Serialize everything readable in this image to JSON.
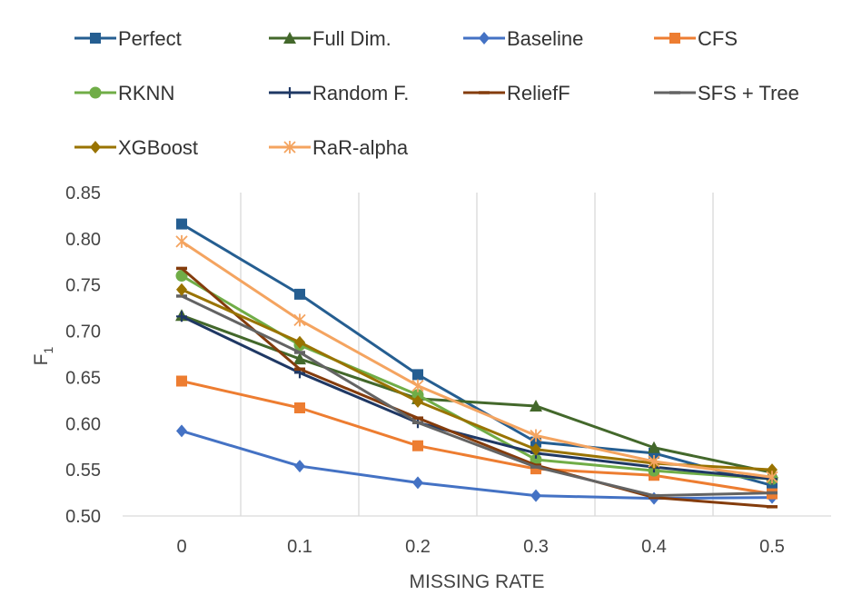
{
  "chart_data": {
    "type": "line",
    "title": "",
    "xlabel": "MISSING RATE",
    "ylabel": "F",
    "ylabel_subscript": "1",
    "categories": [
      "0",
      "0.1",
      "0.2",
      "0.3",
      "0.4",
      "0.5"
    ],
    "ylim": [
      0.5,
      0.85
    ],
    "yticks": [
      "0.50",
      "0.55",
      "0.60",
      "0.65",
      "0.70",
      "0.75",
      "0.80",
      "0.85"
    ],
    "grid": "vertical",
    "legend": "top",
    "series": [
      {
        "name": "Perfect",
        "color": "#255e91",
        "marker": "square",
        "values": [
          0.816,
          0.74,
          0.653,
          0.58,
          0.568,
          0.533
        ]
      },
      {
        "name": "Full Dim.",
        "color": "#43682b",
        "marker": "triangle",
        "values": [
          0.717,
          0.67,
          0.627,
          0.619,
          0.574,
          0.547
        ]
      },
      {
        "name": "Baseline",
        "color": "#4472c4",
        "marker": "diamond",
        "values": [
          0.592,
          0.554,
          0.536,
          0.522,
          0.519,
          0.52
        ]
      },
      {
        "name": "CFS",
        "color": "#ed7d31",
        "marker": "square",
        "values": [
          0.646,
          0.617,
          0.576,
          0.551,
          0.544,
          0.524
        ]
      },
      {
        "name": "RKNN",
        "color": "#70ad47",
        "marker": "circle",
        "values": [
          0.76,
          0.685,
          0.631,
          0.561,
          0.549,
          0.54
        ]
      },
      {
        "name": "Random F.",
        "color": "#1f3864",
        "marker": "plus",
        "values": [
          0.716,
          0.655,
          0.601,
          0.568,
          0.553,
          0.54
        ]
      },
      {
        "name": "ReliefF",
        "color": "#843c0c",
        "marker": "dash",
        "values": [
          0.768,
          0.659,
          0.606,
          0.555,
          0.52,
          0.51
        ]
      },
      {
        "name": "SFS + Tree",
        "color": "#636363",
        "marker": "dash",
        "values": [
          0.738,
          0.677,
          0.601,
          0.553,
          0.522,
          0.525
        ]
      },
      {
        "name": "XGBoost",
        "color": "#997300",
        "marker": "diamond",
        "values": [
          0.745,
          0.688,
          0.624,
          0.572,
          0.557,
          0.55
        ]
      },
      {
        "name": "RaR-alpha",
        "color": "#f4a460",
        "marker": "asterisk",
        "values": [
          0.797,
          0.712,
          0.641,
          0.587,
          0.559,
          0.542
        ]
      }
    ]
  }
}
